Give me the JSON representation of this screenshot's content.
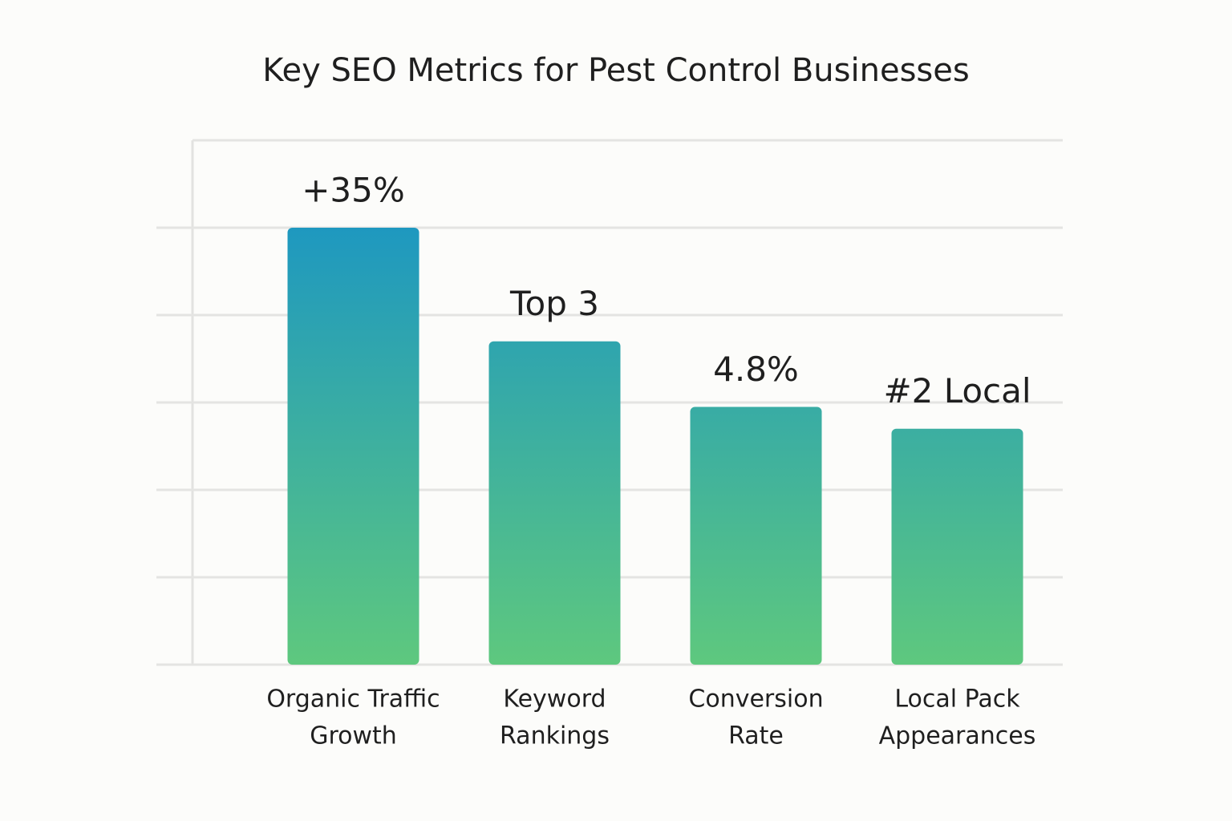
{
  "chart_data": {
    "type": "bar",
    "title": "Key SEO Metrics for Pest Control Businesses",
    "categories": [
      [
        "Organic Traffic",
        "Growth"
      ],
      [
        "Keyword",
        "Rankings"
      ],
      [
        "Conversion",
        "Rate"
      ],
      [
        "Local Pack",
        "Appearances"
      ]
    ],
    "values": [
      5.0,
      3.7,
      2.95,
      2.7
    ],
    "annotations": [
      "+35%",
      "Top 3",
      "4.8%",
      "#2 Local"
    ],
    "colors": [
      "#1e98c0",
      "#5ec87e"
    ],
    "ylim": [
      0,
      6
    ],
    "yticks": [
      0,
      1,
      2,
      3,
      4,
      5,
      6
    ],
    "grid": true
  }
}
